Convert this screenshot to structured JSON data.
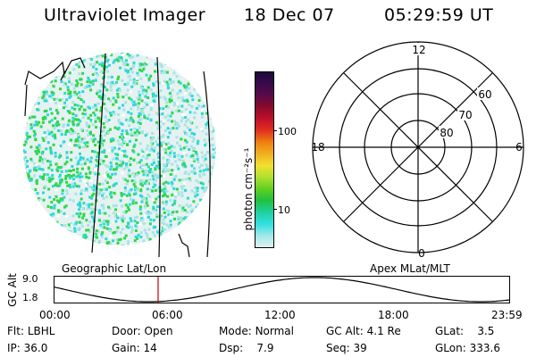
{
  "header": {
    "instrument": "Ultraviolet Imager",
    "date": "18 Dec 07",
    "time": "05:29:59 UT"
  },
  "colorbar": {
    "label": "photon cm⁻²s⁻¹",
    "ticks": [
      "100",
      "10"
    ],
    "colors": [
      "#1a0a3a",
      "#3a0a4a",
      "#5a0a4a",
      "#8a0a2a",
      "#c0102a",
      "#e03020",
      "#f08010",
      "#f0b020",
      "#f0e030",
      "#b0e030",
      "#60d020",
      "#20c040",
      "#20d0a0",
      "#30e0e0",
      "#a0e8e8",
      "#e0f0f0"
    ]
  },
  "geographic_panel": {
    "label": "Geographic Lat/Lon"
  },
  "polar_panel": {
    "label": "Apex MLat/MLT",
    "mlt_labels": [
      "12",
      "18",
      "6",
      "0"
    ],
    "lat_labels": [
      "60",
      "70",
      "80"
    ]
  },
  "altitude_plot": {
    "ylabel": "GC Alt",
    "yticks": [
      "9.0",
      "1.8"
    ],
    "xticks": [
      "00:00",
      "06:00",
      "12:00",
      "18:00",
      "23:59"
    ],
    "current_marker_time": "05:29:59"
  },
  "footer": {
    "row1": [
      {
        "key": "Flt:",
        "value": "LBHL"
      },
      {
        "key": "Door:",
        "value": "Open"
      },
      {
        "key": "Mode:",
        "value": "Normal"
      },
      {
        "key": "GC Alt:",
        "value": "4.1 Re"
      },
      {
        "key": "GLat:",
        "value": "3.5"
      }
    ],
    "row2": [
      {
        "key": "IP:",
        "value": "36.0"
      },
      {
        "key": "Gain:",
        "value": "14"
      },
      {
        "key": "Dsp:",
        "value": "7.9"
      },
      {
        "key": "Seq:",
        "value": "39"
      },
      {
        "key": "GLon:",
        "value": "333.6"
      }
    ]
  }
}
